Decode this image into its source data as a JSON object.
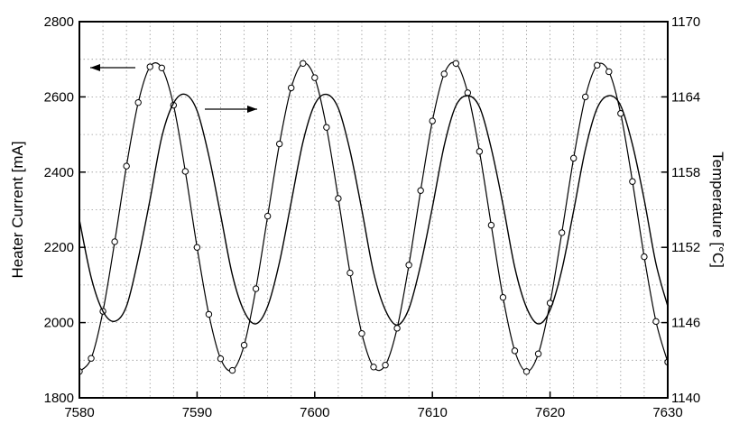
{
  "chart_data": {
    "type": "line",
    "title": "",
    "xlabel": "",
    "ylabel_left": "Heater Current [mA]",
    "ylabel_right": "Temperature [°C]",
    "xlim": [
      7580,
      7630
    ],
    "ylim_left": [
      1800,
      2800
    ],
    "ylim_right": [
      1140,
      1170
    ],
    "x_ticks": [
      "7580",
      "7590",
      "7600",
      "7610",
      "7620",
      "7630"
    ],
    "y_ticks_left": [
      "1800",
      "2000",
      "2200",
      "2400",
      "2600",
      "2800"
    ],
    "y_ticks_right": [
      "1140",
      "1146",
      "1152",
      "1158",
      "1164",
      "1170"
    ],
    "grid": true,
    "grid_style": "dotted",
    "annotations": [
      {
        "text": "",
        "arrow": "left",
        "points_to": "left axis"
      },
      {
        "text": "",
        "arrow": "right",
        "points_to": "right axis"
      }
    ],
    "series": [
      {
        "axis": "left",
        "style": "line with open circle markers",
        "x": [
          7580.0,
          7581.0,
          7582.0,
          7583.0,
          7584.0,
          7585.0,
          7586.0,
          7587.0,
          7588.0,
          7589.0,
          7590.0,
          7591.0,
          7592.0,
          7593.0,
          7594.0,
          7595.0,
          7596.0,
          7597.0,
          7598.0,
          7599.0,
          7600.0,
          7601.0,
          7602.0,
          7603.0,
          7604.0,
          7605.0,
          7606.0,
          7607.0,
          7608.0,
          7609.0,
          7610.0,
          7611.0,
          7612.0,
          7613.0,
          7614.0,
          7615.0,
          7616.0,
          7617.0,
          7618.0,
          7619.0,
          7620.0,
          7621.0,
          7622.0,
          7623.0,
          7624.0,
          7625.0,
          7626.0,
          7627.0,
          7628.0,
          7629.0,
          7630.0
        ],
        "y": [
          1870,
          1905,
          2030,
          2215,
          2416,
          2585,
          2680,
          2677,
          2578,
          2402,
          2200,
          2022,
          1904,
          1873,
          1940,
          2090,
          2283,
          2475,
          2624,
          2689,
          2651,
          2519,
          2330,
          2132,
          1971,
          1882,
          1887,
          1985,
          2153,
          2351,
          2536,
          2661,
          2689,
          2611,
          2455,
          2259,
          2067,
          1925,
          1870,
          1917,
          2052,
          2239,
          2437,
          2600,
          2684,
          2667,
          2556,
          2375,
          2175,
          2003,
          1895
        ]
      },
      {
        "axis": "right",
        "style": "line, oscillating",
        "x": [
          7580.0,
          7581.0,
          7582.0,
          7583.0,
          7584.0,
          7585.0,
          7586.0,
          7587.0,
          7588.0,
          7589.0,
          7590.0,
          7591.0,
          7592.0,
          7593.0,
          7594.0,
          7595.0,
          7596.0,
          7597.0,
          7598.0,
          7599.0,
          7600.0,
          7601.0,
          7602.0,
          7603.0,
          7604.0,
          7605.0,
          7606.0,
          7607.0,
          7608.0,
          7609.0,
          7610.0,
          7611.0,
          7612.0,
          7613.0,
          7614.0,
          7615.0,
          7616.0,
          7617.0,
          7618.0,
          7619.0,
          7620.0,
          7621.0,
          7622.0,
          7623.0,
          7624.0,
          7625.0,
          7626.0,
          7627.0,
          7628.0,
          7629.0,
          7630.0
        ],
        "y": [
          1154.2,
          1149.6,
          1146.9,
          1146.1,
          1147.3,
          1151.1,
          1155.8,
          1160.8,
          1163.5,
          1164.2,
          1162.9,
          1159.3,
          1154.6,
          1149.8,
          1146.9,
          1145.9,
          1147.3,
          1150.8,
          1155.6,
          1160.4,
          1163.4,
          1164.2,
          1163.1,
          1159.7,
          1155.0,
          1150.0,
          1147.0,
          1145.8,
          1147.1,
          1150.6,
          1155.2,
          1160.1,
          1163.3,
          1164.1,
          1163.2,
          1159.9,
          1155.4,
          1150.4,
          1147.2,
          1145.9,
          1147.0,
          1150.2,
          1154.9,
          1159.8,
          1163.1,
          1164.1,
          1163.3,
          1160.2,
          1155.8,
          1150.7,
          1147.3
        ]
      }
    ]
  }
}
